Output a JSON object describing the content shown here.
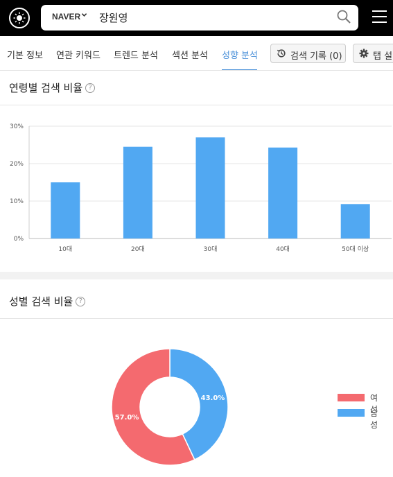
{
  "header": {
    "logo_icon": "sun-logo-icon",
    "engine": "NAVER",
    "query": "장원영",
    "search_icon": "search-icon",
    "menu_icon": "hamburger-menu-icon"
  },
  "tabs": [
    {
      "label": "기본 정보",
      "active": false
    },
    {
      "label": "연관 키워드",
      "active": false
    },
    {
      "label": "트렌드 분석",
      "active": false
    },
    {
      "label": "섹션 분석",
      "active": false
    },
    {
      "label": "성향 분석",
      "active": true
    }
  ],
  "actions": {
    "history_label": "검색 기록 (0)",
    "history_icon": "history-icon",
    "settings_label": "탭 설",
    "settings_icon": "gear-icon"
  },
  "age_section": {
    "title": "연령별 검색 비율",
    "help_icon": "question-circle-icon"
  },
  "gender_section": {
    "title": "성별 검색 비율",
    "help_icon": "question-circle-icon"
  },
  "chart_data": [
    {
      "type": "bar",
      "title": "연령별 검색 비율",
      "categories": [
        "10대",
        "20대",
        "30대",
        "40대",
        "50대 이상"
      ],
      "values": [
        15.0,
        24.5,
        27.0,
        24.3,
        9.2
      ],
      "ylim": [
        0,
        30
      ],
      "yticks": [
        "0%",
        "10%",
        "20%",
        "30%"
      ],
      "grid": true,
      "color": "#51a8f2"
    },
    {
      "type": "pie",
      "title": "성별 검색 비율",
      "labels": [
        "여성",
        "남성"
      ],
      "values": [
        57.0,
        43.0
      ],
      "value_labels": [
        "57.0%",
        "43.0%"
      ],
      "colors": [
        "#f46a6f",
        "#51a8f2"
      ],
      "legend": "right"
    }
  ]
}
